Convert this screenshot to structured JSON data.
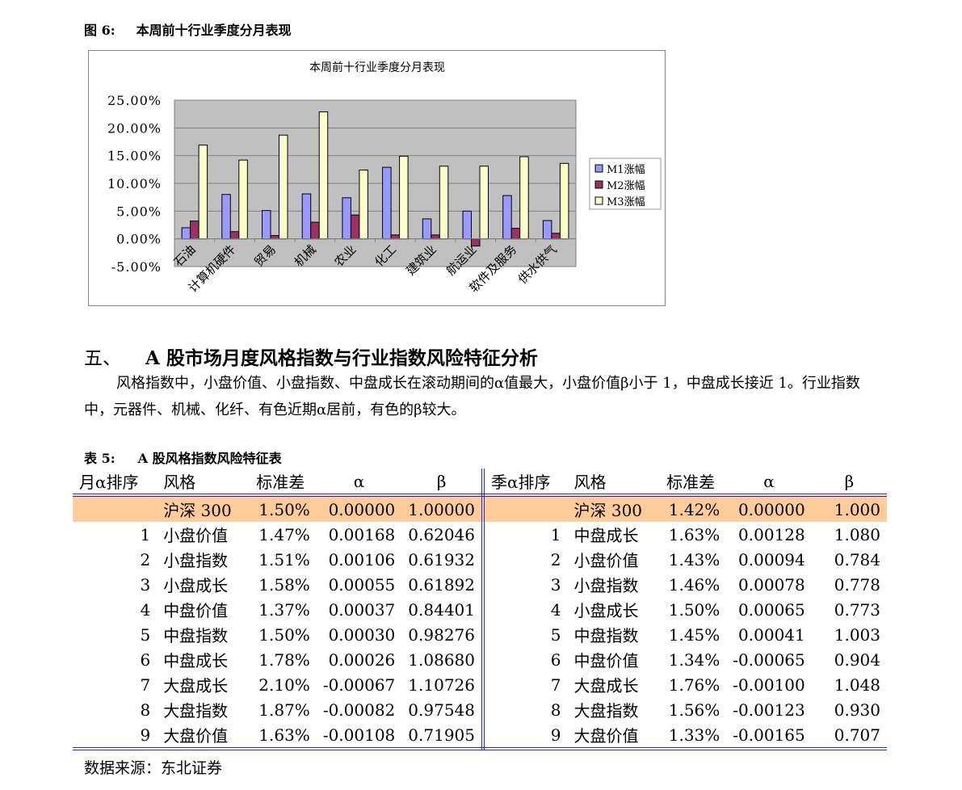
{
  "figure": {
    "label": "图 6:",
    "title": "本周前十行业季度分月表现"
  },
  "chart_data": {
    "type": "bar",
    "title": "本周前十行业季度分月表现",
    "categories": [
      "石油",
      "计算机硬件",
      "贸易",
      "机械",
      "农业",
      "化工",
      "建筑业",
      "航运业",
      "软件及服务",
      "供水供气"
    ],
    "series": [
      {
        "name": "M1涨幅",
        "color": "#9999ff",
        "values": [
          2.0,
          8.0,
          5.1,
          8.1,
          7.4,
          12.9,
          3.6,
          5.0,
          7.8,
          3.3
        ]
      },
      {
        "name": "M2涨幅",
        "color": "#993366",
        "values": [
          3.2,
          1.3,
          0.6,
          3.0,
          4.3,
          0.7,
          0.7,
          -1.3,
          1.9,
          1.0
        ]
      },
      {
        "name": "M3涨幅",
        "color": "#ffffcc",
        "values": [
          16.9,
          14.2,
          18.7,
          22.9,
          12.4,
          14.9,
          13.1,
          13.1,
          14.8,
          13.6
        ]
      }
    ],
    "yticks": [
      "25.00%",
      "20.00%",
      "15.00%",
      "10.00%",
      "5.00%",
      "0.00%",
      "-5.00%"
    ],
    "ylim": [
      -5,
      25
    ],
    "grid": true,
    "legend": "right",
    "plot_bg": "#c0c0c0"
  },
  "section": {
    "num": "五、",
    "title": "A 股市场月度风格指数与行业指数风险特征分析"
  },
  "paragraph": "风格指数中，小盘价值、小盘指数、中盘成长在滚动期间的α值最大，小盘价值β小于 1，中盘成长接近 1。行业指数中，元器件、机械、化纤、有色近期α居前，有色的β较大。",
  "table": {
    "label": "表 5:",
    "title": "A 股风格指数风险特征表",
    "headers": [
      "月α排序",
      "风格",
      "标准差",
      "α",
      "β",
      "季α排序",
      "风格",
      "标准差",
      "α",
      "β"
    ],
    "rows": [
      [
        "",
        "沪深 300",
        "1.50%",
        "0.00000",
        "1.00000",
        "",
        "沪深 300",
        "1.42%",
        "0.00000",
        "1.000"
      ],
      [
        "1",
        "小盘价值",
        "1.47%",
        "0.00168",
        "0.62046",
        "1",
        "中盘成长",
        "1.63%",
        "0.00128",
        "1.080"
      ],
      [
        "2",
        "小盘指数",
        "1.51%",
        "0.00106",
        "0.61932",
        "2",
        "小盘价值",
        "1.43%",
        "0.00094",
        "0.784"
      ],
      [
        "3",
        "小盘成长",
        "1.58%",
        "0.00055",
        "0.61892",
        "3",
        "小盘指数",
        "1.46%",
        "0.00078",
        "0.778"
      ],
      [
        "4",
        "中盘价值",
        "1.37%",
        "0.00037",
        "0.84401",
        "4",
        "小盘成长",
        "1.50%",
        "0.00065",
        "0.773"
      ],
      [
        "5",
        "中盘指数",
        "1.50%",
        "0.00030",
        "0.98276",
        "5",
        "中盘指数",
        "1.45%",
        "0.00041",
        "1.003"
      ],
      [
        "6",
        "中盘成长",
        "1.78%",
        "0.00026",
        "1.08680",
        "6",
        "中盘价值",
        "1.34%",
        "-0.00065",
        "0.904"
      ],
      [
        "7",
        "大盘成长",
        "2.10%",
        "-0.00067",
        "1.10726",
        "7",
        "大盘成长",
        "1.76%",
        "-0.00100",
        "1.048"
      ],
      [
        "8",
        "大盘指数",
        "1.87%",
        "-0.00082",
        "0.97548",
        "8",
        "大盘指数",
        "1.56%",
        "-0.00123",
        "0.930"
      ],
      [
        "9",
        "大盘价值",
        "1.63%",
        "-0.00108",
        "0.71905",
        "9",
        "大盘价值",
        "1.33%",
        "-0.00165",
        "0.707"
      ]
    ],
    "highlight_color": "#ffcc99",
    "rule_color": "#1b2bd6"
  },
  "source": "数据来源：东北证券"
}
